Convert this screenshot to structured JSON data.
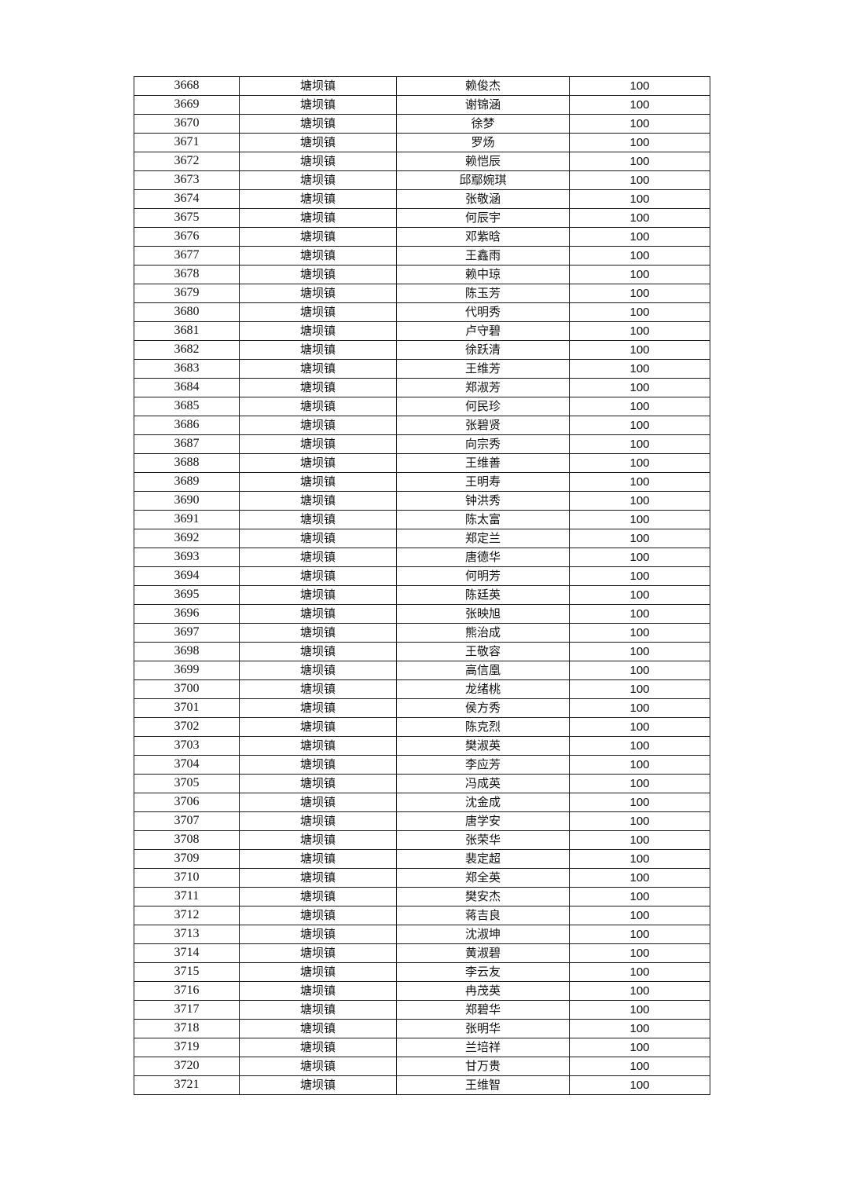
{
  "table": {
    "rows": [
      [
        "3668",
        "塘坝镇",
        "赖俊杰",
        "100"
      ],
      [
        "3669",
        "塘坝镇",
        "谢锦涵",
        "100"
      ],
      [
        "3670",
        "塘坝镇",
        "徐梦",
        "100"
      ],
      [
        "3671",
        "塘坝镇",
        "罗炀",
        "100"
      ],
      [
        "3672",
        "塘坝镇",
        "赖恺辰",
        "100"
      ],
      [
        "3673",
        "塘坝镇",
        "邱鄢婉琪",
        "100"
      ],
      [
        "3674",
        "塘坝镇",
        "张敬涵",
        "100"
      ],
      [
        "3675",
        "塘坝镇",
        "何辰宇",
        "100"
      ],
      [
        "3676",
        "塘坝镇",
        "邓紫晗",
        "100"
      ],
      [
        "3677",
        "塘坝镇",
        "王鑫雨",
        "100"
      ],
      [
        "3678",
        "塘坝镇",
        "赖中琼",
        "100"
      ],
      [
        "3679",
        "塘坝镇",
        "陈玉芳",
        "100"
      ],
      [
        "3680",
        "塘坝镇",
        "代明秀",
        "100"
      ],
      [
        "3681",
        "塘坝镇",
        "卢守碧",
        "100"
      ],
      [
        "3682",
        "塘坝镇",
        "徐跃清",
        "100"
      ],
      [
        "3683",
        "塘坝镇",
        "王维芳",
        "100"
      ],
      [
        "3684",
        "塘坝镇",
        "郑淑芳",
        "100"
      ],
      [
        "3685",
        "塘坝镇",
        "何民珍",
        "100"
      ],
      [
        "3686",
        "塘坝镇",
        "张碧贤",
        "100"
      ],
      [
        "3687",
        "塘坝镇",
        "向宗秀",
        "100"
      ],
      [
        "3688",
        "塘坝镇",
        "王维善",
        "100"
      ],
      [
        "3689",
        "塘坝镇",
        "王明寿",
        "100"
      ],
      [
        "3690",
        "塘坝镇",
        "钟洪秀",
        "100"
      ],
      [
        "3691",
        "塘坝镇",
        "陈太富",
        "100"
      ],
      [
        "3692",
        "塘坝镇",
        "郑定兰",
        "100"
      ],
      [
        "3693",
        "塘坝镇",
        "唐德华",
        "100"
      ],
      [
        "3694",
        "塘坝镇",
        "何明芳",
        "100"
      ],
      [
        "3695",
        "塘坝镇",
        "陈廷英",
        "100"
      ],
      [
        "3696",
        "塘坝镇",
        "张映旭",
        "100"
      ],
      [
        "3697",
        "塘坝镇",
        "熊治成",
        "100"
      ],
      [
        "3698",
        "塘坝镇",
        "王敬容",
        "100"
      ],
      [
        "3699",
        "塘坝镇",
        "高信凰",
        "100"
      ],
      [
        "3700",
        "塘坝镇",
        "龙绪桃",
        "100"
      ],
      [
        "3701",
        "塘坝镇",
        "侯方秀",
        "100"
      ],
      [
        "3702",
        "塘坝镇",
        "陈克烈",
        "100"
      ],
      [
        "3703",
        "塘坝镇",
        "樊淑英",
        "100"
      ],
      [
        "3704",
        "塘坝镇",
        "李应芳",
        "100"
      ],
      [
        "3705",
        "塘坝镇",
        "冯成英",
        "100"
      ],
      [
        "3706",
        "塘坝镇",
        "沈金成",
        "100"
      ],
      [
        "3707",
        "塘坝镇",
        "唐学安",
        "100"
      ],
      [
        "3708",
        "塘坝镇",
        "张荣华",
        "100"
      ],
      [
        "3709",
        "塘坝镇",
        "裴定超",
        "100"
      ],
      [
        "3710",
        "塘坝镇",
        "郑全英",
        "100"
      ],
      [
        "3711",
        "塘坝镇",
        "樊安杰",
        "100"
      ],
      [
        "3712",
        "塘坝镇",
        "蒋吉良",
        "100"
      ],
      [
        "3713",
        "塘坝镇",
        "沈淑坤",
        "100"
      ],
      [
        "3714",
        "塘坝镇",
        "黄淑碧",
        "100"
      ],
      [
        "3715",
        "塘坝镇",
        "李云友",
        "100"
      ],
      [
        "3716",
        "塘坝镇",
        "冉茂英",
        "100"
      ],
      [
        "3717",
        "塘坝镇",
        "郑碧华",
        "100"
      ],
      [
        "3718",
        "塘坝镇",
        "张明华",
        "100"
      ],
      [
        "3719",
        "塘坝镇",
        "兰培祥",
        "100"
      ],
      [
        "3720",
        "塘坝镇",
        "甘万贵",
        "100"
      ],
      [
        "3721",
        "塘坝镇",
        "王维智",
        "100"
      ]
    ]
  }
}
